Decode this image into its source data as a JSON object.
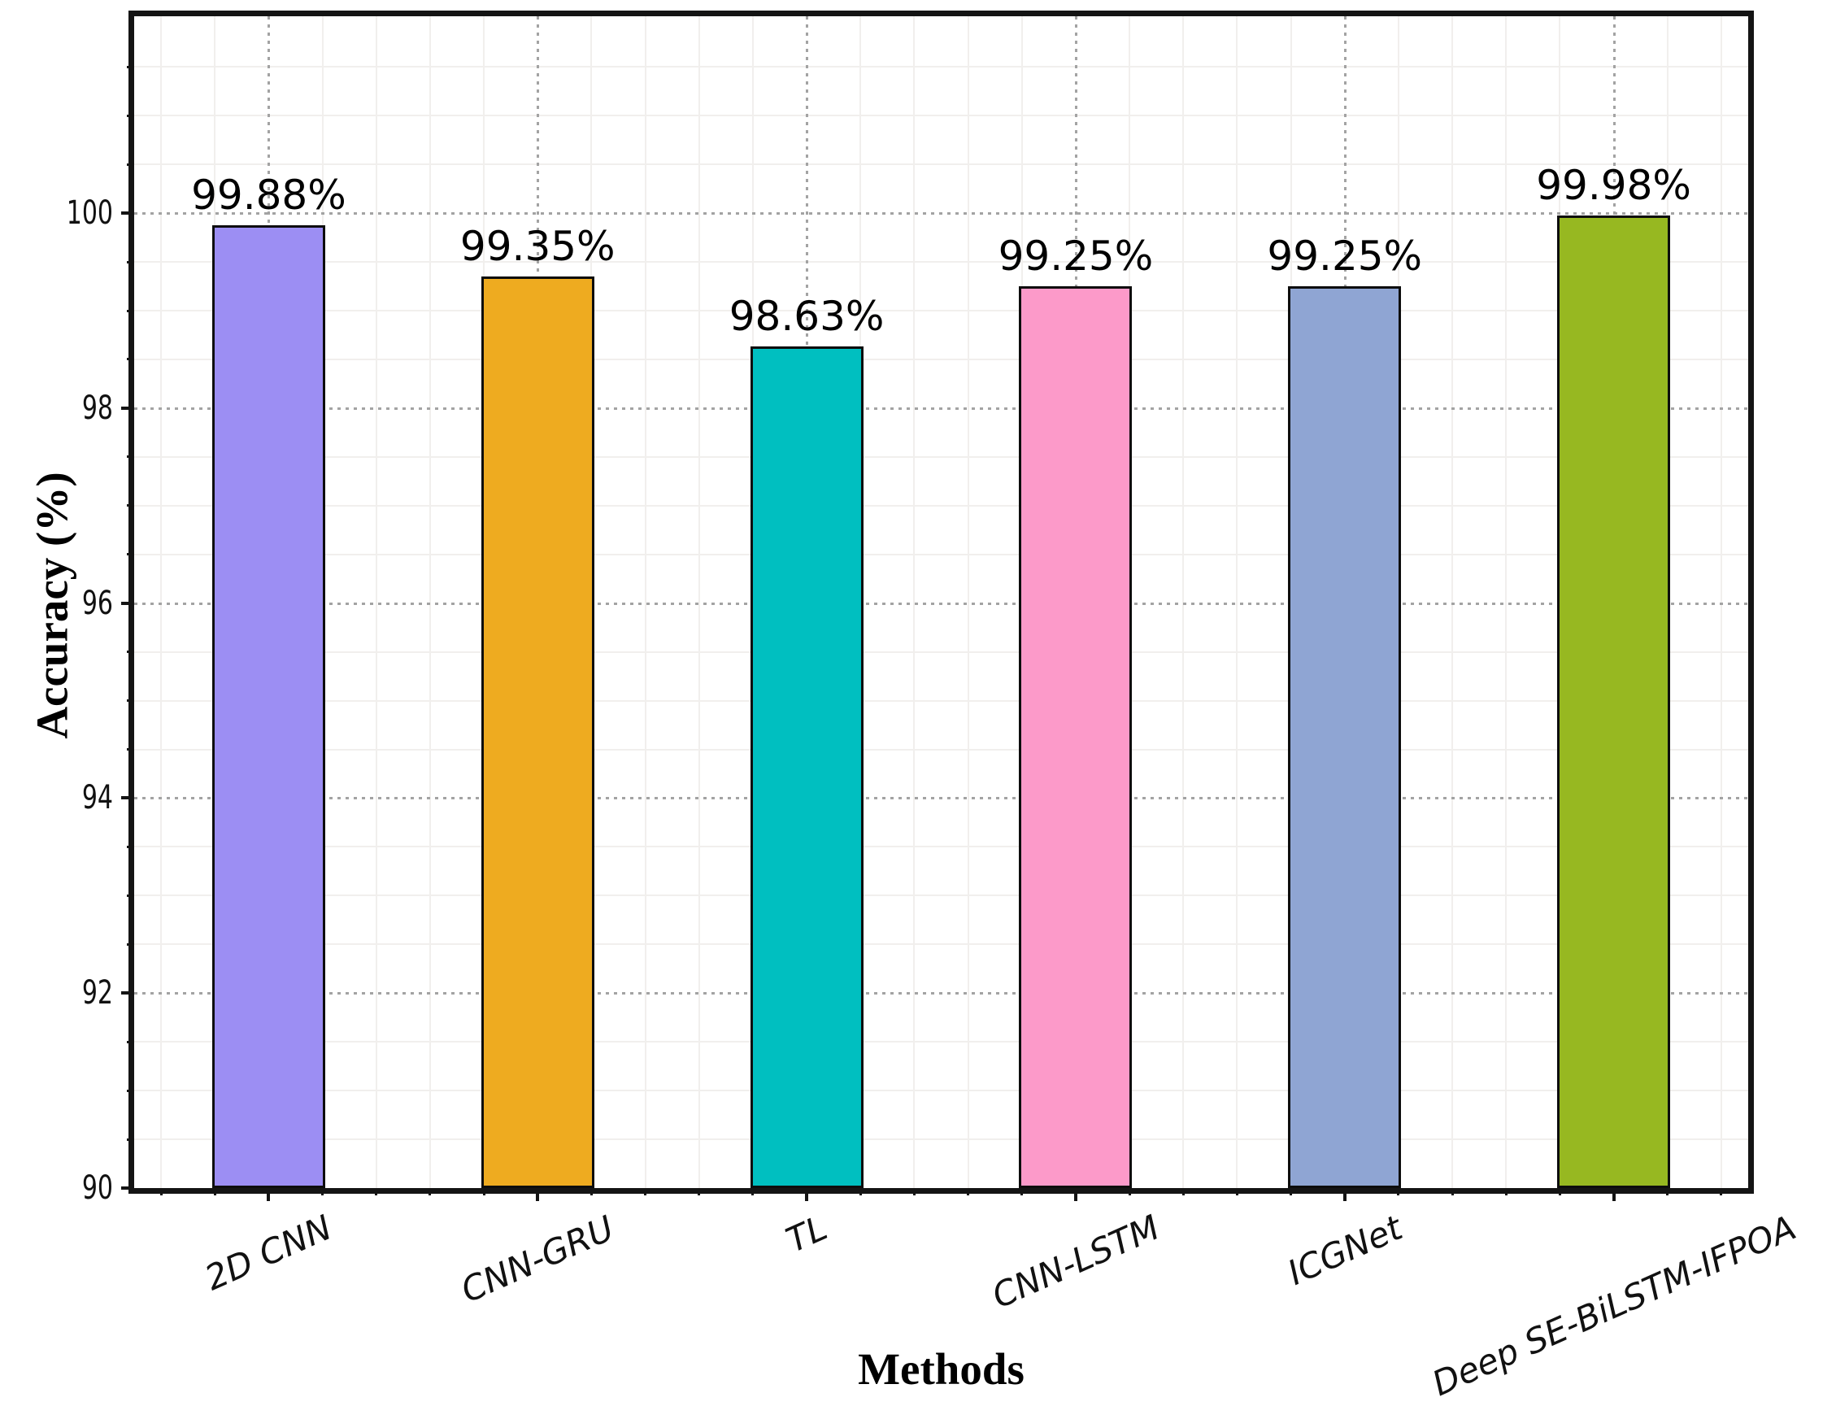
{
  "chart_data": {
    "type": "bar",
    "title": "",
    "xlabel": "Methods",
    "ylabel": "Accuracy (%)",
    "categories": [
      "2D CNN",
      "CNN-GRU",
      "TL",
      "CNN-LSTM",
      "ICGNet",
      "Deep SE-BiLSTM-IFPOA"
    ],
    "values": [
      99.88,
      99.35,
      98.63,
      99.25,
      99.25,
      99.98
    ],
    "value_labels": [
      "99.88%",
      "99.35%",
      "98.63%",
      "99.25%",
      "99.25%",
      "99.98%"
    ],
    "bar_colors": [
      "#9c8ef3",
      "#eeab20",
      "#00bfc0",
      "#fc9ac9",
      "#8fa5d3",
      "#97b821"
    ],
    "bar_edge_color": "#0d0d0d",
    "ylim": [
      90,
      102.02
    ],
    "yticks": [
      90,
      92,
      94,
      96,
      98,
      100
    ],
    "ytick_labels": [
      "90",
      "92",
      "94",
      "96",
      "98",
      "100"
    ],
    "y_minor_step": 0.5,
    "x_minor_divisions_per_slot": 5,
    "grid": {
      "major": "dotted",
      "minor": "faint-solid",
      "major_color": "#a3a3a3",
      "minor_color": "#f1efed"
    },
    "legend": "none",
    "axis_color": "#141414",
    "label_rotation_deg": 24
  }
}
